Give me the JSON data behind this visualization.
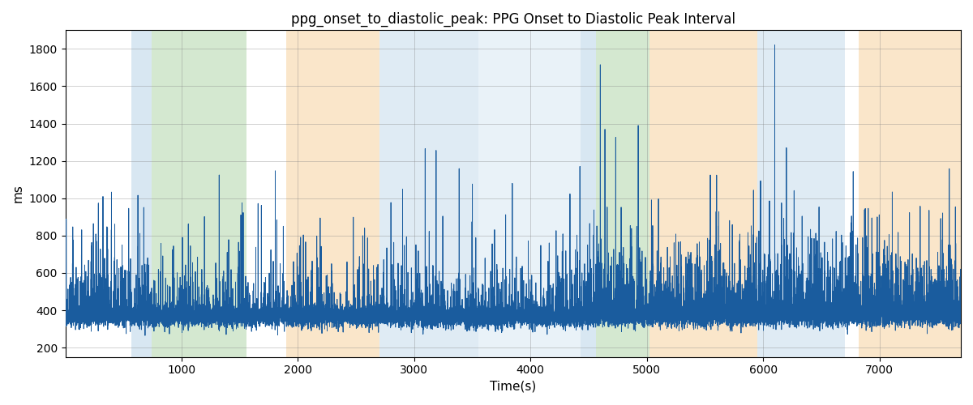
{
  "title": "ppg_onset_to_diastolic_peak: PPG Onset to Diastolic Peak Interval",
  "xlabel": "Time(s)",
  "ylabel": "ms",
  "xlim": [
    0,
    7700
  ],
  "ylim": [
    150,
    1900
  ],
  "yticks": [
    200,
    400,
    600,
    800,
    1000,
    1200,
    1400,
    1600,
    1800
  ],
  "xticks": [
    1000,
    2000,
    3000,
    4000,
    5000,
    6000,
    7000
  ],
  "background_color": "#ffffff",
  "line_color": "#1a5c9e",
  "line_width": 0.7,
  "title_fontsize": 12,
  "label_fontsize": 11,
  "bands": [
    {
      "xmin": 570,
      "xmax": 740,
      "color": "#b8d4e8",
      "alpha": 0.55
    },
    {
      "xmin": 740,
      "xmax": 1560,
      "color": "#a0cc98",
      "alpha": 0.45
    },
    {
      "xmin": 1900,
      "xmax": 2020,
      "color": "#f5c98a",
      "alpha": 0.45
    },
    {
      "xmin": 2020,
      "xmax": 2700,
      "color": "#f5c98a",
      "alpha": 0.45
    },
    {
      "xmin": 2700,
      "xmax": 3550,
      "color": "#b8d4e8",
      "alpha": 0.45
    },
    {
      "xmin": 3550,
      "xmax": 4430,
      "color": "#b8d4e8",
      "alpha": 0.3
    },
    {
      "xmin": 4430,
      "xmax": 4560,
      "color": "#b8d4e8",
      "alpha": 0.55
    },
    {
      "xmin": 4560,
      "xmax": 5020,
      "color": "#a0cc98",
      "alpha": 0.45
    },
    {
      "xmin": 5020,
      "xmax": 5950,
      "color": "#f5c98a",
      "alpha": 0.45
    },
    {
      "xmin": 5950,
      "xmax": 6700,
      "color": "#b8d4e8",
      "alpha": 0.45
    },
    {
      "xmin": 6700,
      "xmax": 6820,
      "color": "#ffffff",
      "alpha": 1.0
    },
    {
      "xmin": 6820,
      "xmax": 7750,
      "color": "#f5c98a",
      "alpha": 0.45
    }
  ],
  "seed": 12345,
  "n_samples": 18000,
  "base_mean": 370,
  "base_std": 28,
  "base_min": 195,
  "base_max": 480
}
